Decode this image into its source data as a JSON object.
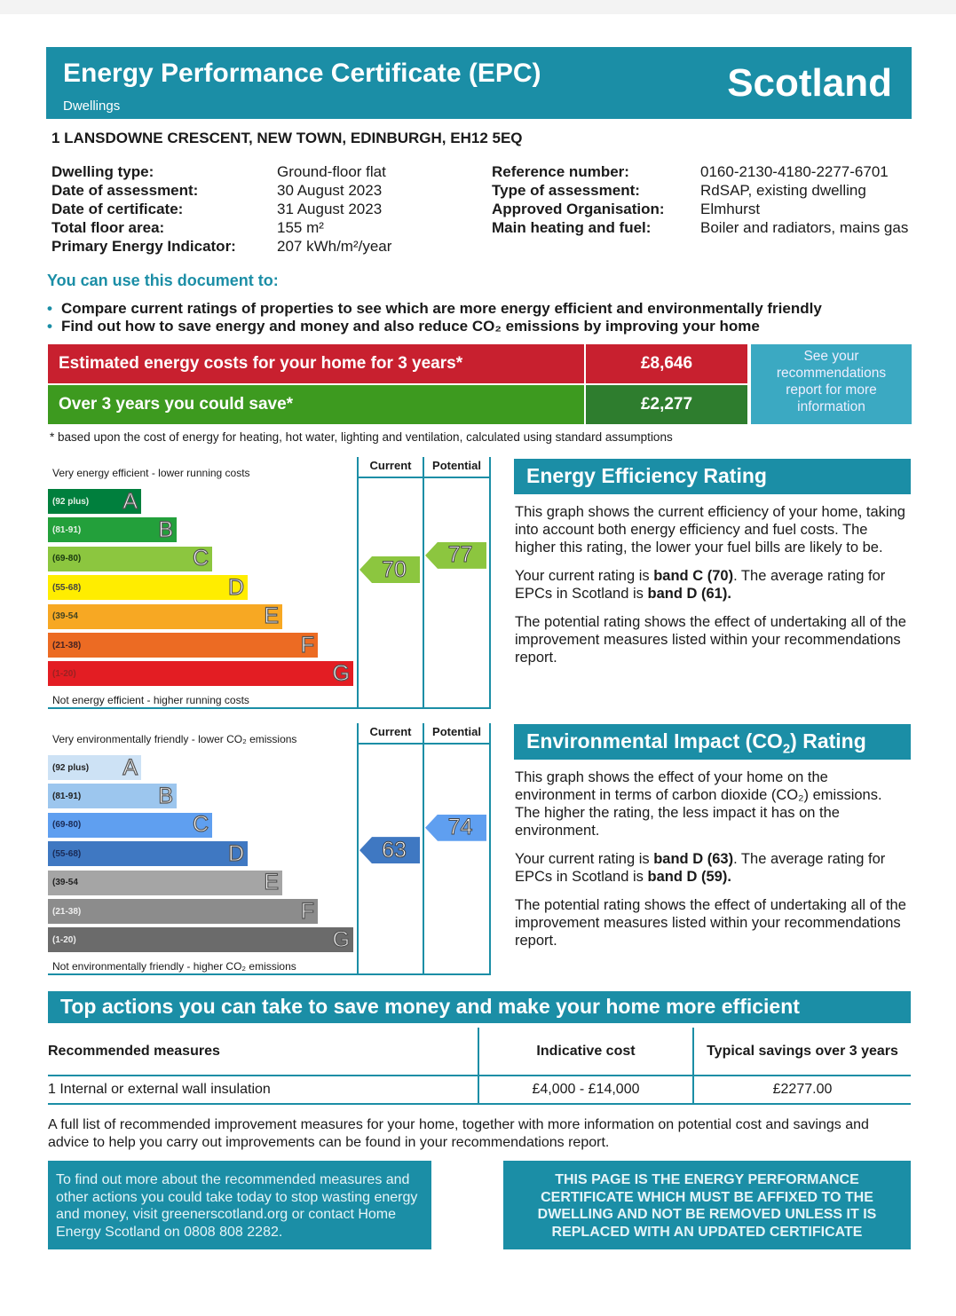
{
  "header": {
    "title": "Energy Performance Certificate (EPC)",
    "subtitle": "Dwellings",
    "country": "Scotland"
  },
  "address": "1 LANSDOWNE CRESCENT, NEW TOWN, EDINBURGH, EH12 5EQ",
  "details_left": [
    {
      "label": "Dwelling type:",
      "value": "Ground-floor flat"
    },
    {
      "label": "Date of assessment:",
      "value": "30 August 2023"
    },
    {
      "label": "Date of certificate:",
      "value": "31 August 2023"
    },
    {
      "label": "Total floor area:",
      "value": "155 m²"
    },
    {
      "label": "Primary Energy Indicator:",
      "value": "207 kWh/m²/year"
    }
  ],
  "details_right": [
    {
      "label": "Reference number:",
      "value": "0160-2130-4180-2277-6701"
    },
    {
      "label": "Type of assessment:",
      "value": "RdSAP, existing dwelling"
    },
    {
      "label": "Approved Organisation:",
      "value": "Elmhurst"
    },
    {
      "label": "Main heating and fuel:",
      "value": "Boiler and radiators, mains gas"
    }
  ],
  "use": {
    "heading": "You can use this document to:",
    "bullets": [
      "Compare current ratings of properties to see which are more energy efficient and environmentally friendly",
      "Find out how to save energy and money and also reduce CO₂ emissions by improving your home"
    ]
  },
  "costs": {
    "estimated_label": "Estimated energy costs for your home for 3 years*",
    "estimated_value": "£8,646",
    "save_label": "Over 3 years you could save*",
    "save_value": "£2,277",
    "see_box": "See your recommendations report for more information",
    "footnote": "* based upon the cost of energy for heating, hot water, lighting and ventilation, calculated using standard assumptions",
    "colors": {
      "red": "#c8202f",
      "green": "#3d9a1f",
      "dark_green": "#2e7d2e"
    }
  },
  "energy_chart": {
    "top_label": "Very energy efficient - lower running costs",
    "bottom_label": "Not energy efficient - higher running costs",
    "col_current": "Current",
    "col_potential": "Potential",
    "current": 70,
    "potential": 77,
    "bands": [
      {
        "letter": "A",
        "range": "(92 plus)",
        "color": "#007f3d",
        "text": "#e6f2e6"
      },
      {
        "letter": "B",
        "range": "(81-91)",
        "color": "#23a03b",
        "text": "#e6f2e6"
      },
      {
        "letter": "C",
        "range": "(69-80)",
        "color": "#8cc63f",
        "text": "#1a3a10"
      },
      {
        "letter": "D",
        "range": "(55-68)",
        "color": "#ffed00",
        "text": "#444"
      },
      {
        "letter": "E",
        "range": "(39-54",
        "color": "#f7a823",
        "text": "#442"
      },
      {
        "letter": "F",
        "range": "(21-38)",
        "color": "#ec6b23",
        "text": "#422"
      },
      {
        "letter": "G",
        "range": "(1-20)",
        "color": "#e31d23",
        "text": "#922"
      }
    ],
    "current_color": "#8cc63f",
    "potential_color": "#8cc63f"
  },
  "env_chart": {
    "top_label": "Very environmentally friendly - lower CO₂ emissions",
    "bottom_label": "Not environmentally friendly - higher CO₂ emissions",
    "col_current": "Current",
    "col_potential": "Potential",
    "current": 63,
    "potential": 74,
    "bands": [
      {
        "letter": "A",
        "range": "(92 plus)",
        "color": "#cde2f5",
        "text": "#222"
      },
      {
        "letter": "B",
        "range": "(81-91)",
        "color": "#9cc6ee",
        "text": "#222"
      },
      {
        "letter": "C",
        "range": "(69-80)",
        "color": "#5f9ff0",
        "text": "#1a2a55"
      },
      {
        "letter": "D",
        "range": "(55-68)",
        "color": "#3f78c2",
        "text": "#1a2a55"
      },
      {
        "letter": "E",
        "range": "(39-54",
        "color": "#a5a5a5",
        "text": "#222"
      },
      {
        "letter": "F",
        "range": "(21-38)",
        "color": "#8c8c8c",
        "text": "#eee"
      },
      {
        "letter": "G",
        "range": "(1-20)",
        "color": "#6b6b6b",
        "text": "#eee"
      }
    ],
    "current_color": "#3f78c2",
    "potential_color": "#5f9ff0"
  },
  "eer": {
    "heading": "Energy Efficiency Rating",
    "p1": "This graph shows the current efficiency of your home, taking into account both energy efficiency and fuel costs. The higher this rating, the lower your fuel bills are likely to be.",
    "p2_a": "Your current rating is ",
    "p2_b": "band C (70)",
    "p2_c": ". The average rating for EPCs in Scotland is ",
    "p2_d": "band D (61).",
    "p3": "The potential rating shows the effect of undertaking all of the improvement measures listed within your recommendations report."
  },
  "eir": {
    "heading_a": "Environmental Impact (CO",
    "heading_sub": "2",
    "heading_b": ") Rating",
    "p1": "This graph shows the effect of your home on the environment in terms of carbon dioxide (CO₂) emissions. The higher the rating, the less impact it has on the environment.",
    "p2_a": "Your current rating is ",
    "p2_b": "band D (63)",
    "p2_c": ". The average rating for EPCs in Scotland is ",
    "p2_d": "band D (59).",
    "p3": "The potential rating shows the effect of undertaking all of the improvement measures listed within your recommendations report."
  },
  "actions": {
    "heading": "Top actions you can take to save money and make your home more efficient",
    "columns": [
      "Recommended measures",
      "Indicative cost",
      "Typical savings over 3 years"
    ],
    "rows": [
      [
        "1 Internal or external wall insulation",
        "£4,000 - £14,000",
        "£2277.00"
      ]
    ],
    "note": "A full list of recommended improvement measures for your home, together with more information on potential cost and savings and advice to help you carry out improvements can be found in your recommendations report."
  },
  "footer": {
    "left": "To find out more about the recommended measures and other actions you could take today to stop wasting energy and money, visit greenerscotland.org or contact Home Energy Scotland on 0808 808 2282.",
    "right": "THIS PAGE IS THE ENERGY PERFORMANCE CERTIFICATE WHICH MUST BE AFFIXED TO THE DWELLING AND NOT BE REMOVED UNLESS IT IS REPLACED WITH AN UPDATED CERTIFICATE"
  }
}
